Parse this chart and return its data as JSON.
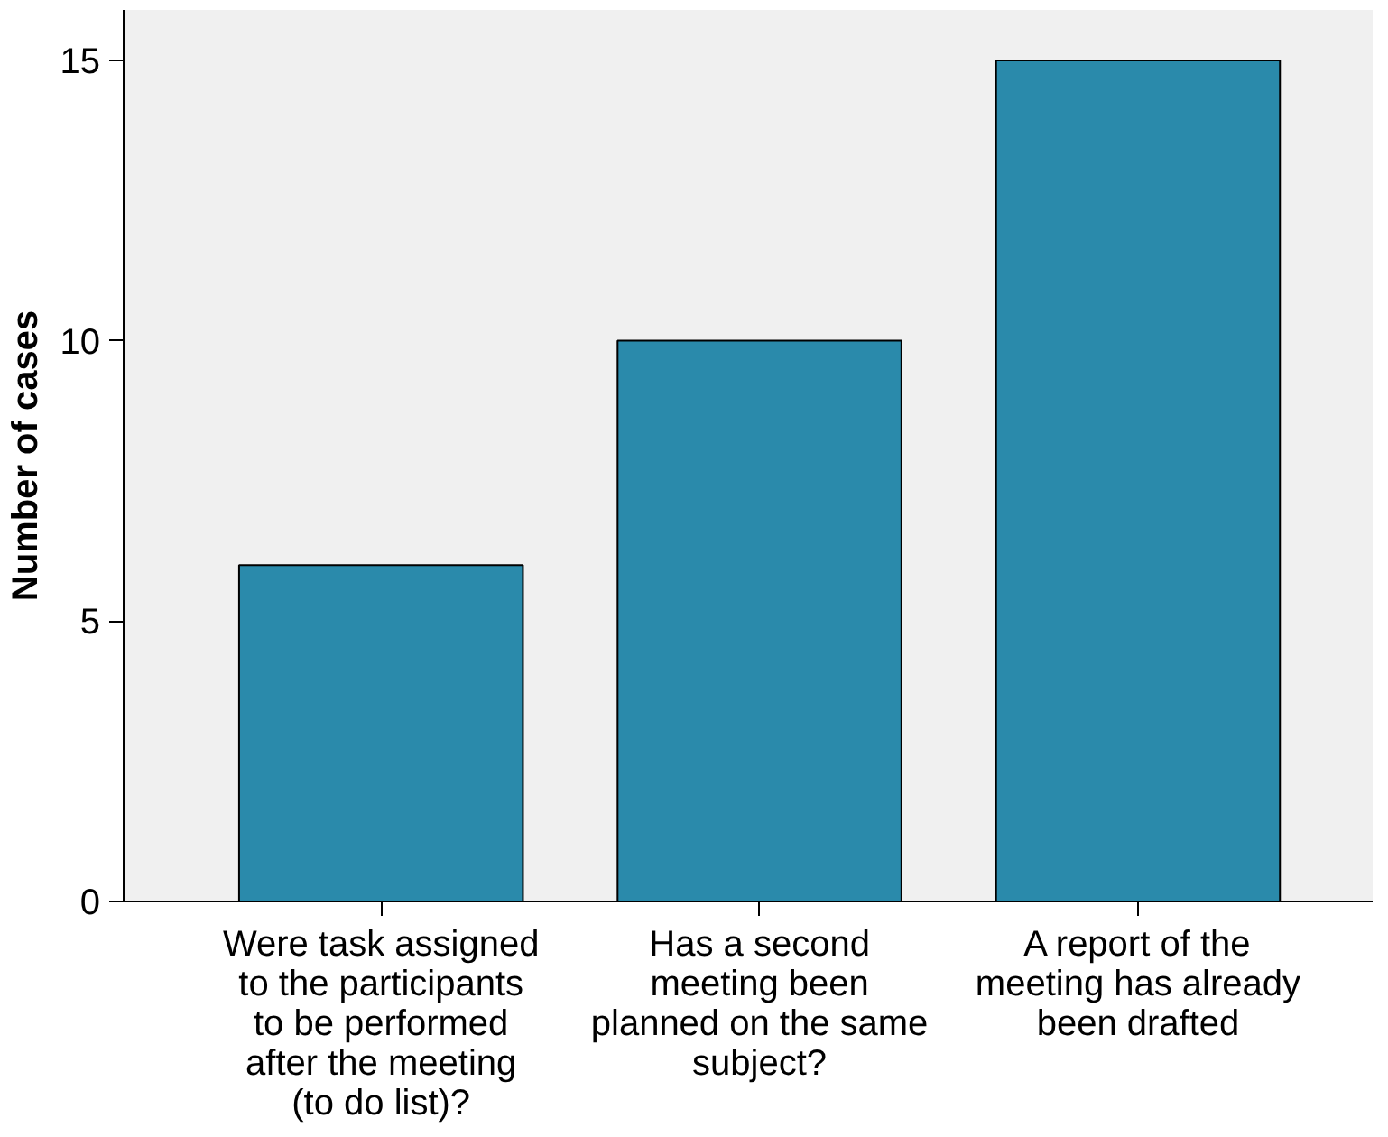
{
  "chart_data": {
    "type": "bar",
    "ylabel": "Number of cases",
    "categories": [
      "Were task assigned to the participants to be performed after the meeting (to do list)?",
      "Has a second meeting been planned on the same subject?",
      "A report of the meeting has already been drafted"
    ],
    "values": [
      6,
      10,
      15
    ],
    "color": "#2a8aab",
    "ylim": [
      0,
      15.9
    ],
    "yticks": [
      0,
      5,
      10,
      15
    ],
    "grid": false
  }
}
